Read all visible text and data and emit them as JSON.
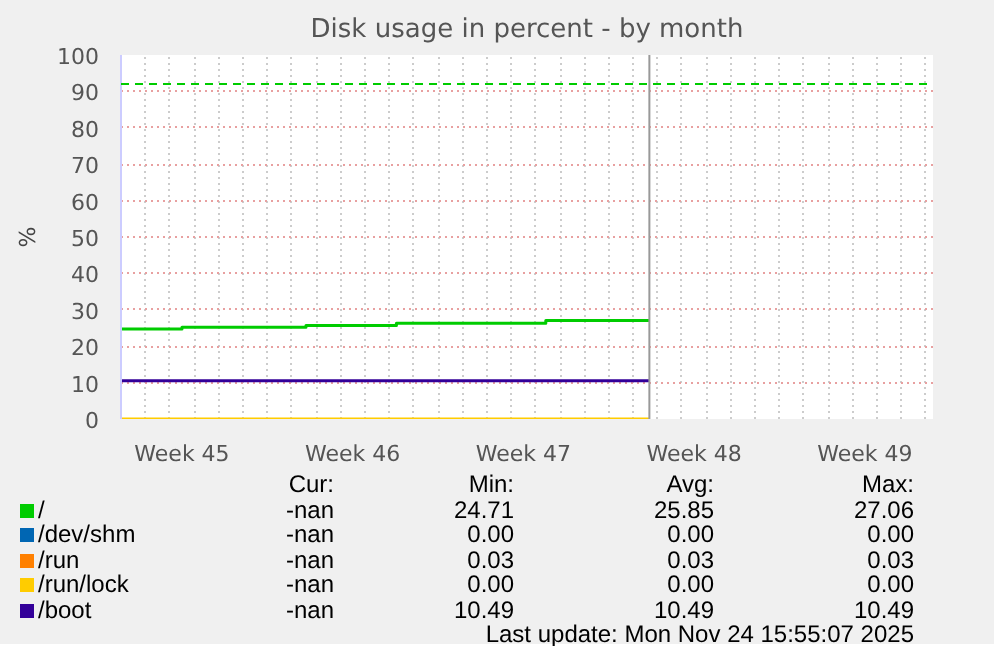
{
  "chart_data": {
    "type": "step",
    "title": "Disk usage in percent - by month",
    "ylabel": "%",
    "xlim": [
      "2025-11-03T00:00",
      "2025-12-06T07:00"
    ],
    "xticks": [
      {
        "value": "2025-11-05T12:00",
        "label": "Week 45"
      },
      {
        "value": "2025-11-12T12:00",
        "label": "Week 46"
      },
      {
        "value": "2025-11-19T12:00",
        "label": "Week 47"
      },
      {
        "value": "2025-11-26T12:00",
        "label": "Week 48"
      },
      {
        "value": "2025-12-03T12:00",
        "label": "Week 49"
      }
    ],
    "ylim": [
      0,
      100
    ],
    "yticks": [
      0,
      10,
      20,
      30,
      40,
      50,
      60,
      70,
      80,
      90,
      100
    ],
    "grid": true,
    "legend": "bottom",
    "series": [
      {
        "name": "/",
        "color": "#00cc00",
        "x": [
          "2025-11-03T00:00",
          "2025-11-04T05:00",
          "2025-11-05T12:00",
          "2025-11-10T14:00",
          "2025-11-14T07:00",
          "2025-11-20T10:00",
          "2025-11-24T15:55"
        ],
        "values": [
          24.71,
          24.71,
          25.2,
          25.7,
          26.3,
          27.06,
          27.06
        ]
      },
      {
        "name": "/dev/shm",
        "color": "#0066b3"
      },
      {
        "name": "/run",
        "color": "#ff8000"
      },
      {
        "name": "/run/lock",
        "color": "#ffcc00",
        "x": [
          "2025-11-03T00:00",
          "2025-11-24T15:55"
        ],
        "values": [
          0,
          0
        ]
      },
      {
        "name": "/boot",
        "color": "#330099",
        "x": [
          "2025-11-03T00:00",
          "2025-11-24T15:55"
        ],
        "values": [
          10.49,
          10.49
        ]
      }
    ],
    "ref_lines": [
      {
        "axis": "y",
        "value": 92,
        "color": "#00cc00",
        "line_style": "dashed"
      },
      {
        "axis": "x",
        "value": "2025-11-24T15:55",
        "color": "#999999",
        "line_style": "solid"
      }
    ],
    "annotations": [
      "Cur:",
      "Min:",
      "Avg:",
      "Max:",
      "-nan",
      "24.71",
      "25.85",
      "27.06",
      "-nan",
      "0.00",
      "0.00",
      "0.00",
      "-nan",
      "0.03",
      "0.03",
      "0.03",
      "-nan",
      "0.00",
      "0.00",
      "0.00",
      "-nan",
      "10.49",
      "10.49",
      "10.49",
      "Last update: Mon Nov 24 15:55:07 2025"
    ]
  }
}
